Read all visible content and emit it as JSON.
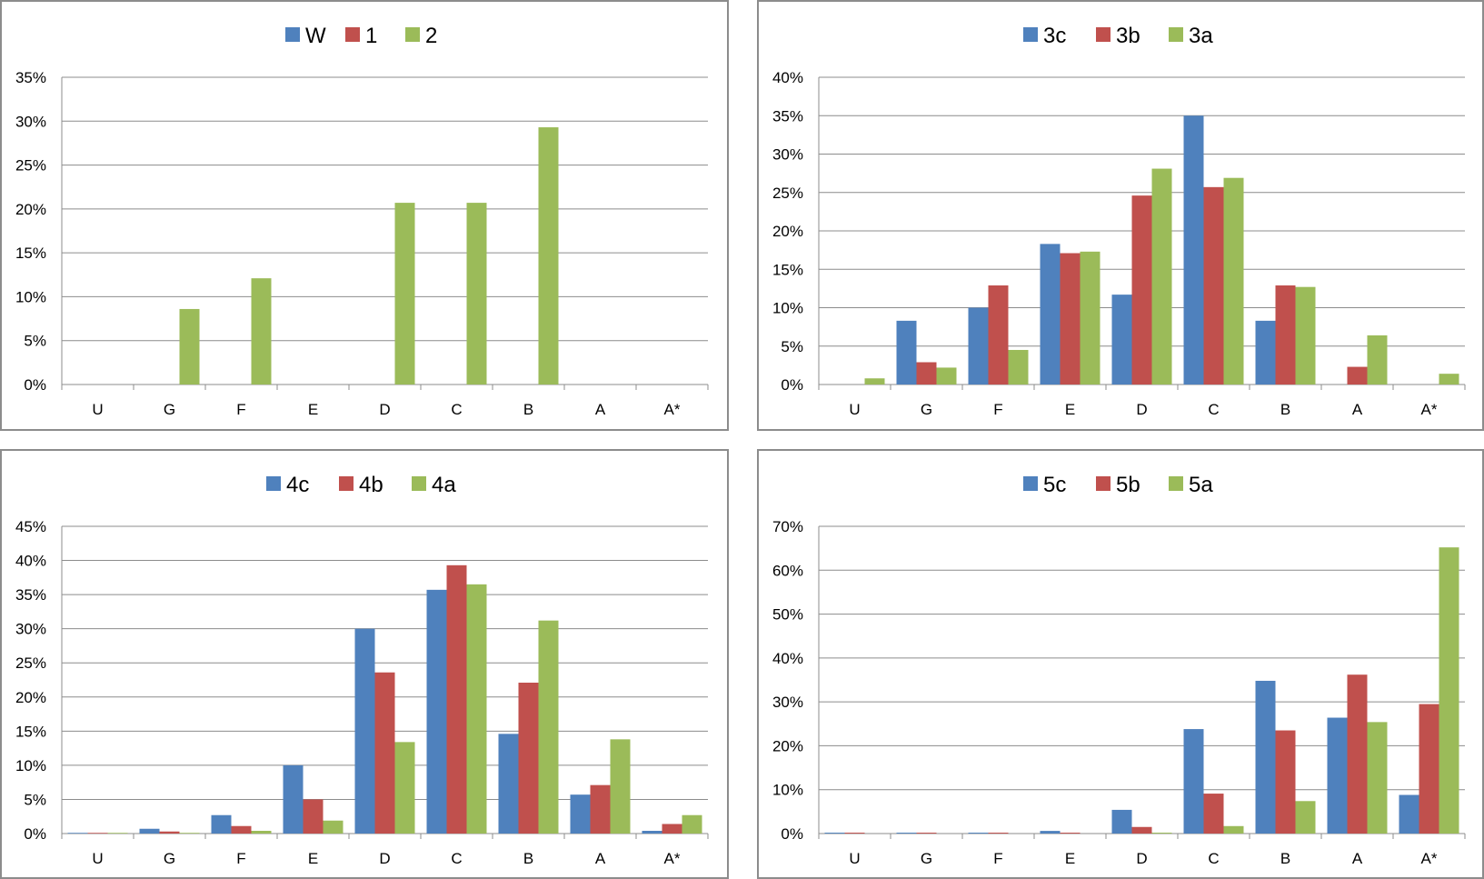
{
  "chart_data": [
    {
      "type": "bar",
      "categories": [
        "U",
        "G",
        "F",
        "E",
        "D",
        "C",
        "B",
        "A",
        "A*"
      ],
      "series": [
        {
          "name": "W",
          "color": "#4f81bd",
          "values": [
            0,
            0,
            0,
            0,
            0,
            0,
            0,
            0,
            0
          ]
        },
        {
          "name": "1",
          "color": "#c0504d",
          "values": [
            0,
            0,
            0,
            0,
            0,
            0,
            0,
            0,
            0
          ]
        },
        {
          "name": "2",
          "color": "#9bbb59",
          "values": [
            0,
            8.6,
            12.1,
            0,
            20.7,
            20.7,
            29.3,
            0,
            0
          ]
        }
      ],
      "ylim": [
        0,
        35
      ],
      "yticks": [
        "0%",
        "5%",
        "10%",
        "15%",
        "20%",
        "25%",
        "30%",
        "35%"
      ],
      "legend": "top",
      "grid": true
    },
    {
      "type": "bar",
      "categories": [
        "U",
        "G",
        "F",
        "E",
        "D",
        "C",
        "B",
        "A",
        "A*"
      ],
      "series": [
        {
          "name": "3c",
          "color": "#4f81bd",
          "values": [
            0,
            8.3,
            10.0,
            18.3,
            11.7,
            35.0,
            8.3,
            0,
            0
          ]
        },
        {
          "name": "3b",
          "color": "#c0504d",
          "values": [
            0,
            2.9,
            12.9,
            17.1,
            24.6,
            25.7,
            12.9,
            2.3,
            0
          ]
        },
        {
          "name": "3a",
          "color": "#9bbb59",
          "values": [
            0.8,
            2.2,
            4.5,
            17.3,
            28.1,
            26.9,
            12.7,
            6.4,
            1.4
          ]
        }
      ],
      "ylim": [
        0,
        40
      ],
      "yticks": [
        "0%",
        "5%",
        "10%",
        "15%",
        "20%",
        "25%",
        "30%",
        "35%",
        "40%"
      ],
      "legend": "top",
      "grid": true
    },
    {
      "type": "bar",
      "categories": [
        "U",
        "G",
        "F",
        "E",
        "D",
        "C",
        "B",
        "A",
        "A*"
      ],
      "series": [
        {
          "name": "4c",
          "color": "#4f81bd",
          "values": [
            0.1,
            0.7,
            2.7,
            10.0,
            30.0,
            35.7,
            14.6,
            5.7,
            0.4
          ]
        },
        {
          "name": "4b",
          "color": "#c0504d",
          "values": [
            0.1,
            0.3,
            1.1,
            5.0,
            23.6,
            39.3,
            22.1,
            7.1,
            1.4
          ]
        },
        {
          "name": "4a",
          "color": "#9bbb59",
          "values": [
            0.1,
            0.1,
            0.4,
            1.9,
            13.4,
            36.5,
            31.2,
            13.8,
            2.7
          ]
        }
      ],
      "ylim": [
        0,
        45
      ],
      "yticks": [
        "0%",
        "5%",
        "10%",
        "15%",
        "20%",
        "25%",
        "30%",
        "35%",
        "40%",
        "45%"
      ],
      "legend": "top",
      "grid": true
    },
    {
      "type": "bar",
      "categories": [
        "U",
        "G",
        "F",
        "E",
        "D",
        "C",
        "B",
        "A",
        "A*"
      ],
      "series": [
        {
          "name": "5c",
          "color": "#4f81bd",
          "values": [
            0.2,
            0.2,
            0.2,
            0.6,
            5.4,
            23.8,
            34.8,
            26.4,
            8.8
          ]
        },
        {
          "name": "5b",
          "color": "#c0504d",
          "values": [
            0.2,
            0.2,
            0.2,
            0.2,
            1.5,
            9.1,
            23.5,
            36.2,
            29.5
          ]
        },
        {
          "name": "5a",
          "color": "#9bbb59",
          "values": [
            0,
            0,
            0,
            0,
            0.2,
            1.7,
            7.4,
            25.4,
            65.2
          ]
        }
      ],
      "ylim": [
        0,
        70
      ],
      "yticks": [
        "0%",
        "10%",
        "20%",
        "30%",
        "40%",
        "50%",
        "60%",
        "70%"
      ],
      "legend": "top",
      "grid": true
    }
  ]
}
